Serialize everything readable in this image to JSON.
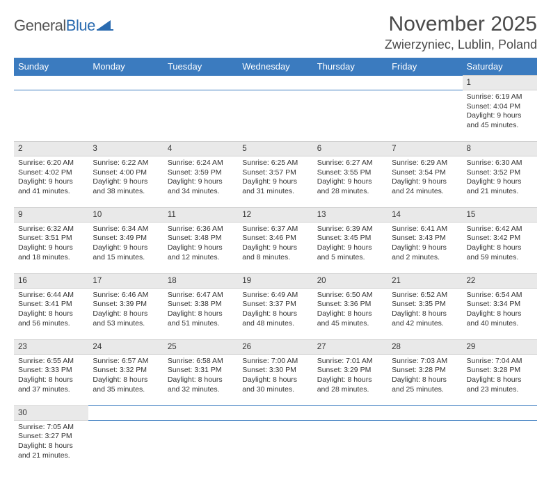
{
  "logo": {
    "text1": "General",
    "text2": "Blue",
    "shape_color": "#2a6bb0"
  },
  "header": {
    "month": "November 2025",
    "location": "Zwierzyniec, Lublin, Poland"
  },
  "colors": {
    "header_bg": "#3b7bbf",
    "header_fg": "#ffffff",
    "daynum_bg": "#e9e9e9",
    "row_border": "#3b7bbf",
    "text": "#333333"
  },
  "weekdays": [
    "Sunday",
    "Monday",
    "Tuesday",
    "Wednesday",
    "Thursday",
    "Friday",
    "Saturday"
  ],
  "weeks": [
    [
      null,
      null,
      null,
      null,
      null,
      null,
      {
        "n": "1",
        "sr": "Sunrise: 6:19 AM",
        "ss": "Sunset: 4:04 PM",
        "dl": "Daylight: 9 hours and 45 minutes."
      }
    ],
    [
      {
        "n": "2",
        "sr": "Sunrise: 6:20 AM",
        "ss": "Sunset: 4:02 PM",
        "dl": "Daylight: 9 hours and 41 minutes."
      },
      {
        "n": "3",
        "sr": "Sunrise: 6:22 AM",
        "ss": "Sunset: 4:00 PM",
        "dl": "Daylight: 9 hours and 38 minutes."
      },
      {
        "n": "4",
        "sr": "Sunrise: 6:24 AM",
        "ss": "Sunset: 3:59 PM",
        "dl": "Daylight: 9 hours and 34 minutes."
      },
      {
        "n": "5",
        "sr": "Sunrise: 6:25 AM",
        "ss": "Sunset: 3:57 PM",
        "dl": "Daylight: 9 hours and 31 minutes."
      },
      {
        "n": "6",
        "sr": "Sunrise: 6:27 AM",
        "ss": "Sunset: 3:55 PM",
        "dl": "Daylight: 9 hours and 28 minutes."
      },
      {
        "n": "7",
        "sr": "Sunrise: 6:29 AM",
        "ss": "Sunset: 3:54 PM",
        "dl": "Daylight: 9 hours and 24 minutes."
      },
      {
        "n": "8",
        "sr": "Sunrise: 6:30 AM",
        "ss": "Sunset: 3:52 PM",
        "dl": "Daylight: 9 hours and 21 minutes."
      }
    ],
    [
      {
        "n": "9",
        "sr": "Sunrise: 6:32 AM",
        "ss": "Sunset: 3:51 PM",
        "dl": "Daylight: 9 hours and 18 minutes."
      },
      {
        "n": "10",
        "sr": "Sunrise: 6:34 AM",
        "ss": "Sunset: 3:49 PM",
        "dl": "Daylight: 9 hours and 15 minutes."
      },
      {
        "n": "11",
        "sr": "Sunrise: 6:36 AM",
        "ss": "Sunset: 3:48 PM",
        "dl": "Daylight: 9 hours and 12 minutes."
      },
      {
        "n": "12",
        "sr": "Sunrise: 6:37 AM",
        "ss": "Sunset: 3:46 PM",
        "dl": "Daylight: 9 hours and 8 minutes."
      },
      {
        "n": "13",
        "sr": "Sunrise: 6:39 AM",
        "ss": "Sunset: 3:45 PM",
        "dl": "Daylight: 9 hours and 5 minutes."
      },
      {
        "n": "14",
        "sr": "Sunrise: 6:41 AM",
        "ss": "Sunset: 3:43 PM",
        "dl": "Daylight: 9 hours and 2 minutes."
      },
      {
        "n": "15",
        "sr": "Sunrise: 6:42 AM",
        "ss": "Sunset: 3:42 PM",
        "dl": "Daylight: 8 hours and 59 minutes."
      }
    ],
    [
      {
        "n": "16",
        "sr": "Sunrise: 6:44 AM",
        "ss": "Sunset: 3:41 PM",
        "dl": "Daylight: 8 hours and 56 minutes."
      },
      {
        "n": "17",
        "sr": "Sunrise: 6:46 AM",
        "ss": "Sunset: 3:39 PM",
        "dl": "Daylight: 8 hours and 53 minutes."
      },
      {
        "n": "18",
        "sr": "Sunrise: 6:47 AM",
        "ss": "Sunset: 3:38 PM",
        "dl": "Daylight: 8 hours and 51 minutes."
      },
      {
        "n": "19",
        "sr": "Sunrise: 6:49 AM",
        "ss": "Sunset: 3:37 PM",
        "dl": "Daylight: 8 hours and 48 minutes."
      },
      {
        "n": "20",
        "sr": "Sunrise: 6:50 AM",
        "ss": "Sunset: 3:36 PM",
        "dl": "Daylight: 8 hours and 45 minutes."
      },
      {
        "n": "21",
        "sr": "Sunrise: 6:52 AM",
        "ss": "Sunset: 3:35 PM",
        "dl": "Daylight: 8 hours and 42 minutes."
      },
      {
        "n": "22",
        "sr": "Sunrise: 6:54 AM",
        "ss": "Sunset: 3:34 PM",
        "dl": "Daylight: 8 hours and 40 minutes."
      }
    ],
    [
      {
        "n": "23",
        "sr": "Sunrise: 6:55 AM",
        "ss": "Sunset: 3:33 PM",
        "dl": "Daylight: 8 hours and 37 minutes."
      },
      {
        "n": "24",
        "sr": "Sunrise: 6:57 AM",
        "ss": "Sunset: 3:32 PM",
        "dl": "Daylight: 8 hours and 35 minutes."
      },
      {
        "n": "25",
        "sr": "Sunrise: 6:58 AM",
        "ss": "Sunset: 3:31 PM",
        "dl": "Daylight: 8 hours and 32 minutes."
      },
      {
        "n": "26",
        "sr": "Sunrise: 7:00 AM",
        "ss": "Sunset: 3:30 PM",
        "dl": "Daylight: 8 hours and 30 minutes."
      },
      {
        "n": "27",
        "sr": "Sunrise: 7:01 AM",
        "ss": "Sunset: 3:29 PM",
        "dl": "Daylight: 8 hours and 28 minutes."
      },
      {
        "n": "28",
        "sr": "Sunrise: 7:03 AM",
        "ss": "Sunset: 3:28 PM",
        "dl": "Daylight: 8 hours and 25 minutes."
      },
      {
        "n": "29",
        "sr": "Sunrise: 7:04 AM",
        "ss": "Sunset: 3:28 PM",
        "dl": "Daylight: 8 hours and 23 minutes."
      }
    ],
    [
      {
        "n": "30",
        "sr": "Sunrise: 7:05 AM",
        "ss": "Sunset: 3:27 PM",
        "dl": "Daylight: 8 hours and 21 minutes."
      },
      null,
      null,
      null,
      null,
      null,
      null
    ]
  ]
}
